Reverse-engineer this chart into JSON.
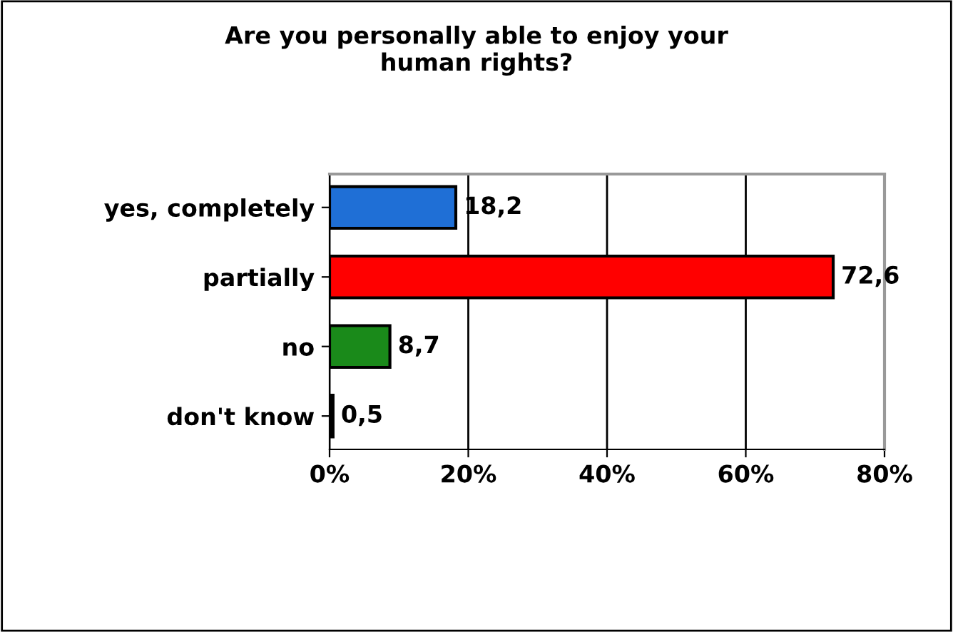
{
  "chart_data": {
    "type": "bar",
    "orientation": "horizontal",
    "title": "Are you personally able to enjoy your\nhuman rights?",
    "categories": [
      "yes, completely",
      "partially",
      "no",
      "don't know"
    ],
    "values": [
      18.2,
      72.6,
      8.7,
      0.5
    ],
    "colors": [
      "#1f6fd6",
      "#ff0000",
      "#1a8a1a",
      "#000000"
    ],
    "value_labels": [
      "18,2",
      "72,6",
      "8,7",
      "0,5"
    ],
    "xlim": [
      0,
      80
    ],
    "xticks": [
      {
        "value": 0,
        "label": "0%"
      },
      {
        "value": 20,
        "label": "20%"
      },
      {
        "value": 40,
        "label": "40%"
      },
      {
        "value": 60,
        "label": "60%"
      },
      {
        "value": 80,
        "label": "80%"
      }
    ],
    "grid": "x",
    "legend": false
  }
}
